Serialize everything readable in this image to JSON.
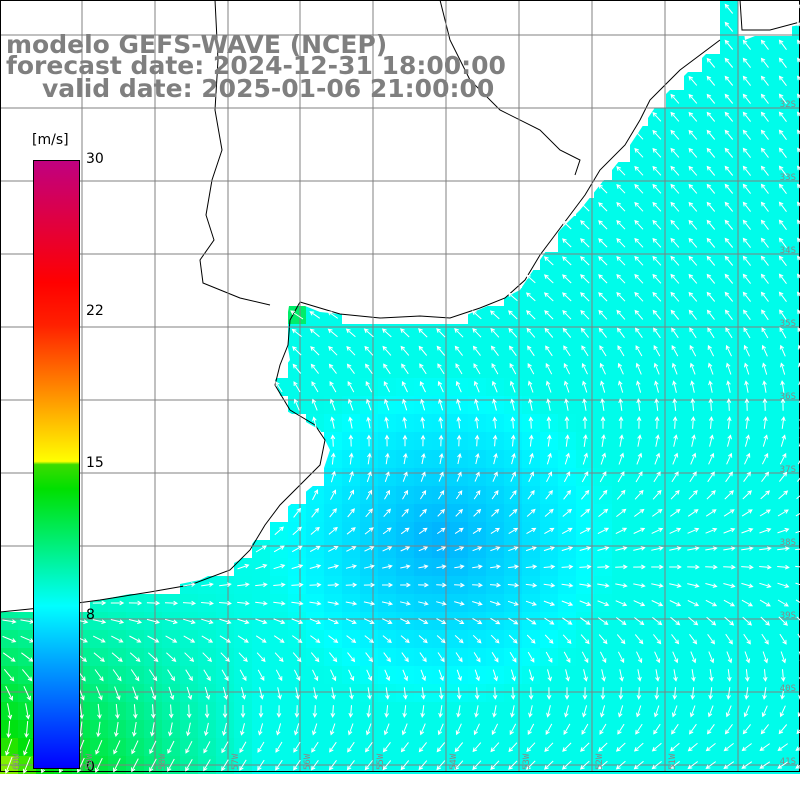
{
  "title": {
    "model": "modelo GEFS-WAVE (NCEP)",
    "forecast": "forecast date: 2024-12-31 18:00:00",
    "valid": "valid date: 2025-01-06 21:00:00"
  },
  "colorbar": {
    "unit": "[m/s]",
    "ticks": [
      "30",
      "22",
      "15",
      "8",
      "0"
    ],
    "min": 0,
    "max": 30,
    "stops": [
      {
        "value": 0,
        "color": "#0000ff"
      },
      {
        "value": 5,
        "color": "#00a0ff"
      },
      {
        "value": 8,
        "color": "#00ffff"
      },
      {
        "value": 14,
        "color": "#00e000"
      },
      {
        "value": 15,
        "color": "#ffff00"
      },
      {
        "value": 18.5,
        "color": "#ff8c00"
      },
      {
        "value": 22,
        "color": "#ff2000"
      },
      {
        "value": 24,
        "color": "#ff0000"
      },
      {
        "value": 30,
        "color": "#c00080"
      }
    ]
  },
  "axes": {
    "lat_labels": [
      "32S",
      "33S",
      "34S",
      "35S",
      "36S",
      "37S",
      "38S",
      "39S",
      "40S",
      "41S"
    ],
    "lon_labels": [
      "60W",
      "59W",
      "58W",
      "57W",
      "56W",
      "55W",
      "54W",
      "53W",
      "52W",
      "51W"
    ]
  },
  "colors": {
    "land": "#ffffff",
    "coastline": "#000000",
    "grid": "#808080",
    "arrows": "#ffffff",
    "title_text": "#7f7f7f"
  },
  "map": {
    "field": "wind speed and direction",
    "region": "Rio de la Plata / Uruguay / Buenos Aires coast",
    "prevailing_direction": "northeast to southwest in south, southeast to northwest in north"
  }
}
